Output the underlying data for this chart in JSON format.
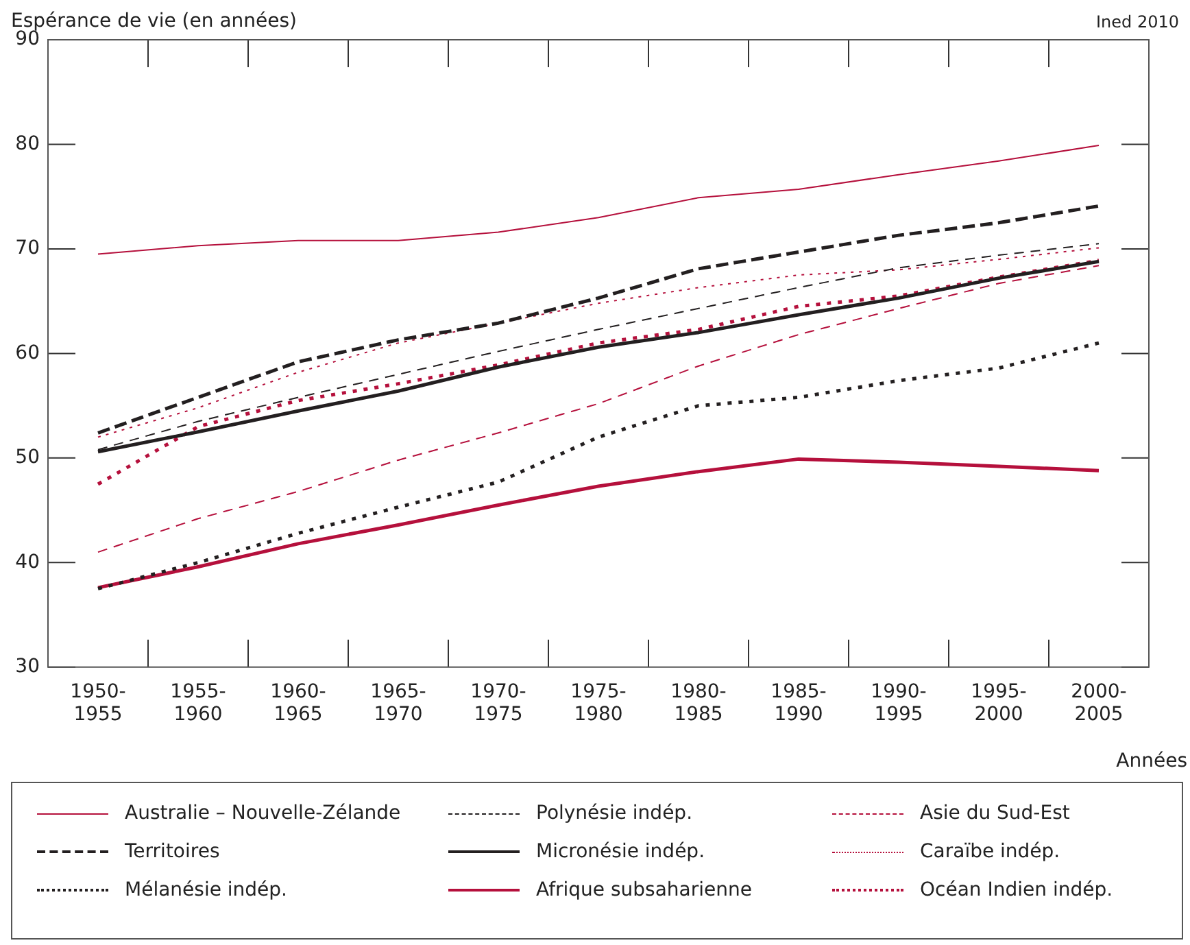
{
  "chart_data": {
    "type": "line",
    "ylabel": "Espérance de vie (en années)",
    "xlabel": "Années",
    "annotations": [
      "Ined 2010"
    ],
    "categories": [
      "1950-1955",
      "1955-1960",
      "1960-1965",
      "1965-1970",
      "1970-1975",
      "1975-1980",
      "1980-1985",
      "1985-1990",
      "1990-1995",
      "1995-2000",
      "2000-2005"
    ],
    "ylim": [
      30,
      90
    ],
    "yticks": [
      30,
      40,
      50,
      60,
      70,
      80,
      90
    ],
    "grid": false,
    "legend": "bottom",
    "marker": "none",
    "series": [
      {
        "name": "Australie – Nouvelle-Zélande",
        "color": "#b5103c",
        "line_style": "solid",
        "values": [
          69.5,
          70.3,
          70.8,
          70.8,
          71.6,
          73.0,
          74.9,
          75.7,
          77.1,
          78.4,
          79.9
        ]
      },
      {
        "name": "Polynésie indép.",
        "color": "#231f20",
        "line_style": "dashed",
        "values": [
          50.8,
          53.5,
          55.8,
          58.0,
          60.2,
          62.3,
          64.3,
          66.3,
          68.2,
          69.4,
          70.5
        ]
      },
      {
        "name": "Asie du Sud-Est",
        "color": "#b5103c",
        "line_style": "dashed",
        "values": [
          41.0,
          44.2,
          46.8,
          49.8,
          52.4,
          55.2,
          58.8,
          61.8,
          64.3,
          66.7,
          68.4
        ]
      },
      {
        "name": "Territoires",
        "color": "#231f20",
        "line_style": "dashed",
        "values": [
          52.4,
          55.8,
          59.2,
          61.3,
          62.9,
          65.3,
          68.1,
          69.7,
          71.3,
          72.5,
          74.1
        ]
      },
      {
        "name": "Micronésie indép.",
        "color": "#231f20",
        "line_style": "solid",
        "values": [
          50.6,
          52.5,
          54.5,
          56.4,
          58.7,
          60.6,
          62.0,
          63.7,
          65.3,
          67.2,
          68.8
        ]
      },
      {
        "name": "Caraïbe indép.",
        "color": "#b5103c",
        "line_style": "dotted",
        "values": [
          52.0,
          54.8,
          58.2,
          61.0,
          62.9,
          64.8,
          66.3,
          67.5,
          68.0,
          69.0,
          70.1
        ]
      },
      {
        "name": "Mélanésie indép.",
        "color": "#231f20",
        "line_style": "dotted",
        "values": [
          37.5,
          40.0,
          42.8,
          45.3,
          47.7,
          52.0,
          55.0,
          55.8,
          57.4,
          58.6,
          61.0
        ]
      },
      {
        "name": "Afrique subsaharienne",
        "color": "#b5103c",
        "line_style": "solid",
        "values": [
          37.6,
          39.6,
          41.8,
          43.6,
          45.5,
          47.3,
          48.7,
          49.9,
          49.6,
          49.2,
          48.8
        ]
      },
      {
        "name": "Océan Indien indép.",
        "color": "#b5103c",
        "line_style": "dotted",
        "values": [
          47.5,
          53.0,
          55.5,
          57.1,
          58.9,
          61.0,
          62.3,
          64.5,
          65.5,
          67.3,
          68.9
        ]
      }
    ]
  }
}
